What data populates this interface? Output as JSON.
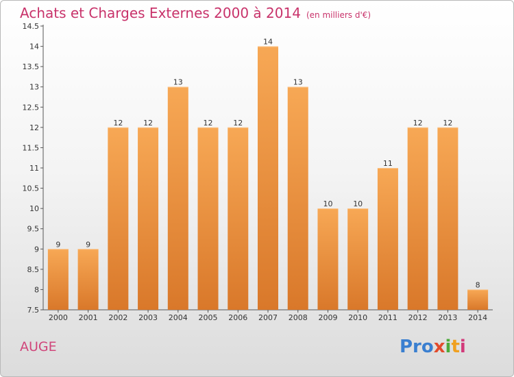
{
  "header": {
    "title": "Achats et Charges Externes 2000 à 2014",
    "subtitle": "(en milliers d'€)"
  },
  "footer": {
    "commune": "AUGE",
    "logo": {
      "p": "Pro",
      "x": "x",
      "i1": "i",
      "t": "t",
      "i2": "i"
    }
  },
  "colors": {
    "bar_top": "#f7a855",
    "bar_bottom": "#d9782a",
    "title": "#c8326a"
  },
  "chart_data": {
    "type": "bar",
    "categories": [
      "2000",
      "2001",
      "2002",
      "2003",
      "2004",
      "2005",
      "2006",
      "2007",
      "2008",
      "2009",
      "2010",
      "2011",
      "2012",
      "2013",
      "2014"
    ],
    "values": [
      9,
      9,
      12,
      12,
      13,
      12,
      12,
      14,
      13,
      10,
      10,
      11,
      12,
      12,
      8
    ],
    "data_labels": [
      "9",
      "9",
      "12",
      "12",
      "13",
      "12",
      "12",
      "14",
      "13",
      "10",
      "10",
      "11",
      "12",
      "12",
      "8"
    ],
    "yticks": [
      "7.5",
      "8",
      "8.5",
      "9",
      "9.5",
      "10",
      "10.5",
      "11",
      "11.5",
      "12",
      "12.5",
      "13",
      "13.5",
      "14",
      "14.5"
    ],
    "ylim": [
      7.5,
      14.5
    ],
    "title": "Achats et Charges Externes 2000 à 2014",
    "xlabel": "",
    "ylabel": "",
    "grid": false
  }
}
